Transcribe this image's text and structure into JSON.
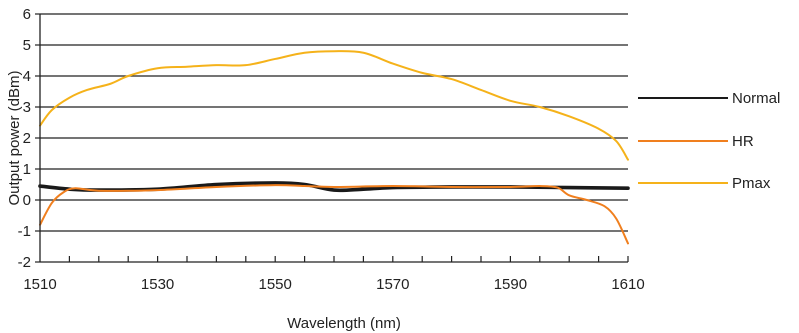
{
  "chart_data": {
    "type": "line",
    "xlabel": "Wavelength (nm)",
    "ylabel": "Output power (dBm)",
    "xlim": [
      1510,
      1610
    ],
    "ylim": [
      -2,
      6
    ],
    "x_ticks": [
      "1510",
      "1530",
      "1550",
      "1570",
      "1590",
      "1610"
    ],
    "y_ticks": [
      "-2",
      "-1",
      "0",
      "1",
      "2",
      "3",
      "4",
      "5",
      "6"
    ],
    "grid": "horizontal",
    "legend_position": "right",
    "series": [
      {
        "name": "Normal",
        "color": "#1a1a1a",
        "x": [
          1510,
          1515,
          1520,
          1530,
          1540,
          1550,
          1555,
          1560,
          1565,
          1570,
          1580,
          1590,
          1600,
          1610
        ],
        "y": [
          0.45,
          0.35,
          0.32,
          0.35,
          0.5,
          0.55,
          0.5,
          0.32,
          0.35,
          0.4,
          0.42,
          0.42,
          0.4,
          0.38
        ]
      },
      {
        "name": "HR",
        "color": "#f07f1e",
        "x": [
          1510,
          1512,
          1514,
          1516,
          1520,
          1530,
          1540,
          1550,
          1555,
          1560,
          1570,
          1580,
          1590,
          1595,
          1598,
          1600,
          1603,
          1606,
          1608,
          1610
        ],
        "y": [
          -0.8,
          -0.1,
          0.25,
          0.38,
          0.3,
          0.32,
          0.42,
          0.48,
          0.45,
          0.42,
          0.45,
          0.42,
          0.42,
          0.45,
          0.4,
          0.15,
          0.0,
          -0.2,
          -0.6,
          -1.4
        ]
      },
      {
        "name": "Pmax",
        "color": "#f5b21a",
        "x": [
          1510,
          1512,
          1515,
          1518,
          1522,
          1525,
          1530,
          1535,
          1540,
          1545,
          1550,
          1555,
          1560,
          1565,
          1570,
          1575,
          1580,
          1585,
          1590,
          1595,
          1600,
          1605,
          1608,
          1610
        ],
        "y": [
          2.4,
          2.9,
          3.3,
          3.55,
          3.75,
          4.0,
          4.25,
          4.3,
          4.35,
          4.35,
          4.55,
          4.75,
          4.8,
          4.75,
          4.4,
          4.1,
          3.9,
          3.55,
          3.2,
          3.0,
          2.7,
          2.3,
          1.9,
          1.3
        ]
      }
    ]
  }
}
